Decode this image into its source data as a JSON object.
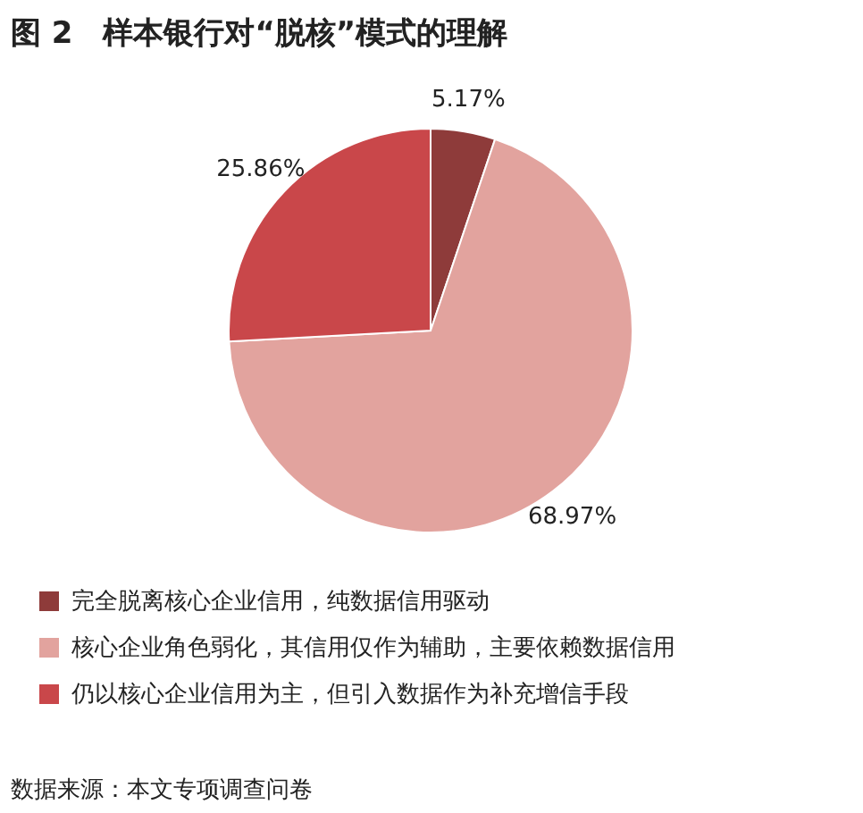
{
  "chart_data": {
    "type": "pie",
    "title": "图 2　样本银行对“脱核”模式的理解",
    "categories": [
      "完全脱离核心企业信用，纯数据信用驱动",
      "核心企业角色弱化，其信用仅作为辅助，主要依赖数据信用",
      "仍以核心企业信用为主，但引入数据作为补充增信手段"
    ],
    "values": [
      5.17,
      68.97,
      25.86
    ],
    "colors": [
      "#8e3b3a",
      "#e2a39e",
      "#c9474a"
    ],
    "value_labels": [
      "5.17%",
      "68.97%",
      "25.86%"
    ],
    "legend": "bottom left",
    "annotations": [
      "数据来源：本文专项调查问卷"
    ]
  }
}
